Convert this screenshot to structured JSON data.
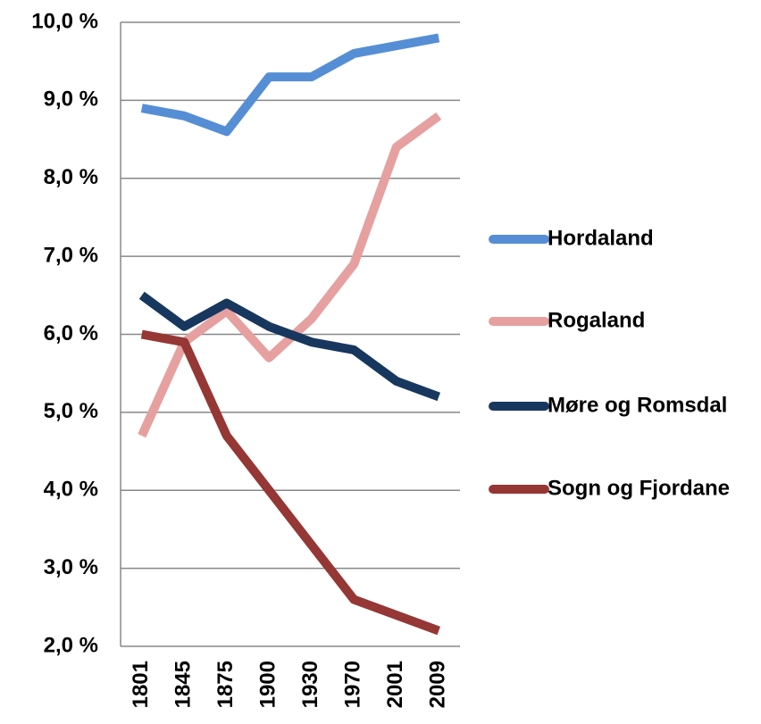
{
  "chart_data": {
    "type": "line",
    "categories": [
      "1801",
      "1845",
      "1875",
      "1900",
      "1930",
      "1970",
      "2001",
      "2009"
    ],
    "series": [
      {
        "name": "Hordaland",
        "color": "#558ed5",
        "values": [
          8.9,
          8.8,
          8.6,
          9.3,
          9.3,
          9.6,
          9.7,
          9.8
        ]
      },
      {
        "name": "Rogaland",
        "color": "#e6a0a0",
        "values": [
          4.7,
          5.9,
          6.3,
          5.7,
          6.2,
          6.9,
          8.4,
          8.8
        ]
      },
      {
        "name": "Møre og Romsdal",
        "color": "#17375e",
        "values": [
          6.5,
          6.1,
          6.4,
          6.1,
          5.9,
          5.8,
          5.4,
          5.2
        ]
      },
      {
        "name": "Sogn og Fjordane",
        "color": "#953735",
        "values": [
          6.0,
          5.9,
          4.7,
          4.0,
          3.3,
          2.6,
          2.4,
          2.2
        ]
      }
    ],
    "ylim": [
      2,
      10
    ],
    "yticks": [
      {
        "value": 2,
        "label": "2,0 %"
      },
      {
        "value": 3,
        "label": "3,0 %"
      },
      {
        "value": 4,
        "label": "4,0 %"
      },
      {
        "value": 5,
        "label": "5,0 %"
      },
      {
        "value": 6,
        "label": "6,0 %"
      },
      {
        "value": 7,
        "label": "7,0 %"
      },
      {
        "value": 8,
        "label": "8,0 %"
      },
      {
        "value": 9,
        "label": "9,0 %"
      },
      {
        "value": 10,
        "label": "10,0 %"
      }
    ],
    "grid": true,
    "legend": "right"
  }
}
